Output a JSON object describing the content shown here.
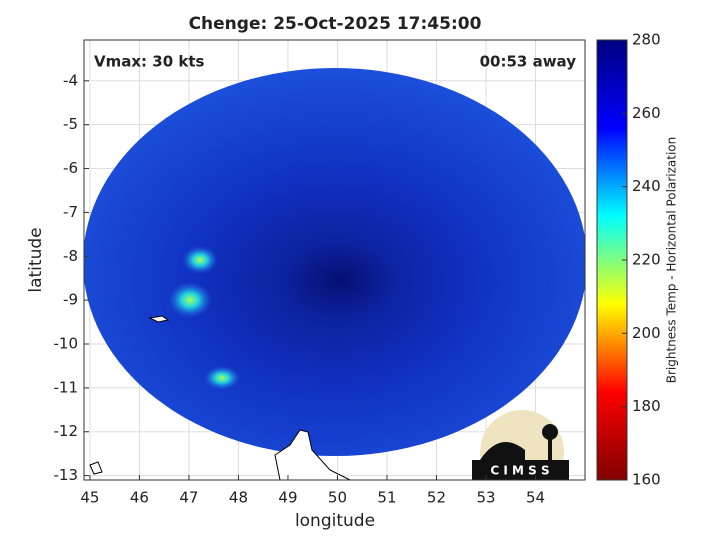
{
  "chart_data": {
    "type": "image",
    "title": "Chenge: 25-Oct-2025 17:45:00",
    "annotations": {
      "left": "Vmax: 30 kts",
      "right": "00:53 away"
    },
    "xlabel": "longitude",
    "ylabel": "latitude",
    "xlim": [
      44.88,
      55.0
    ],
    "xticks": [
      45,
      46,
      47,
      48,
      49,
      50,
      51,
      52,
      53,
      54
    ],
    "ylim": [
      -13.1,
      -3.07
    ],
    "yticks": [
      -4,
      -5,
      -6,
      -7,
      -8,
      -9,
      -10,
      -11,
      -12,
      -13
    ],
    "grid": true,
    "colorbar": {
      "label": "Brightness Temp - Horizontal Polarization",
      "lim": [
        160,
        280
      ],
      "ticks": [
        160,
        180,
        200,
        220,
        240,
        260,
        280
      ],
      "colormap": [
        "#800000",
        "#ff0000",
        "#ffff00",
        "#00ffff",
        "#0000ff",
        "#000080"
      ]
    },
    "logo_text": "C I M S S"
  }
}
